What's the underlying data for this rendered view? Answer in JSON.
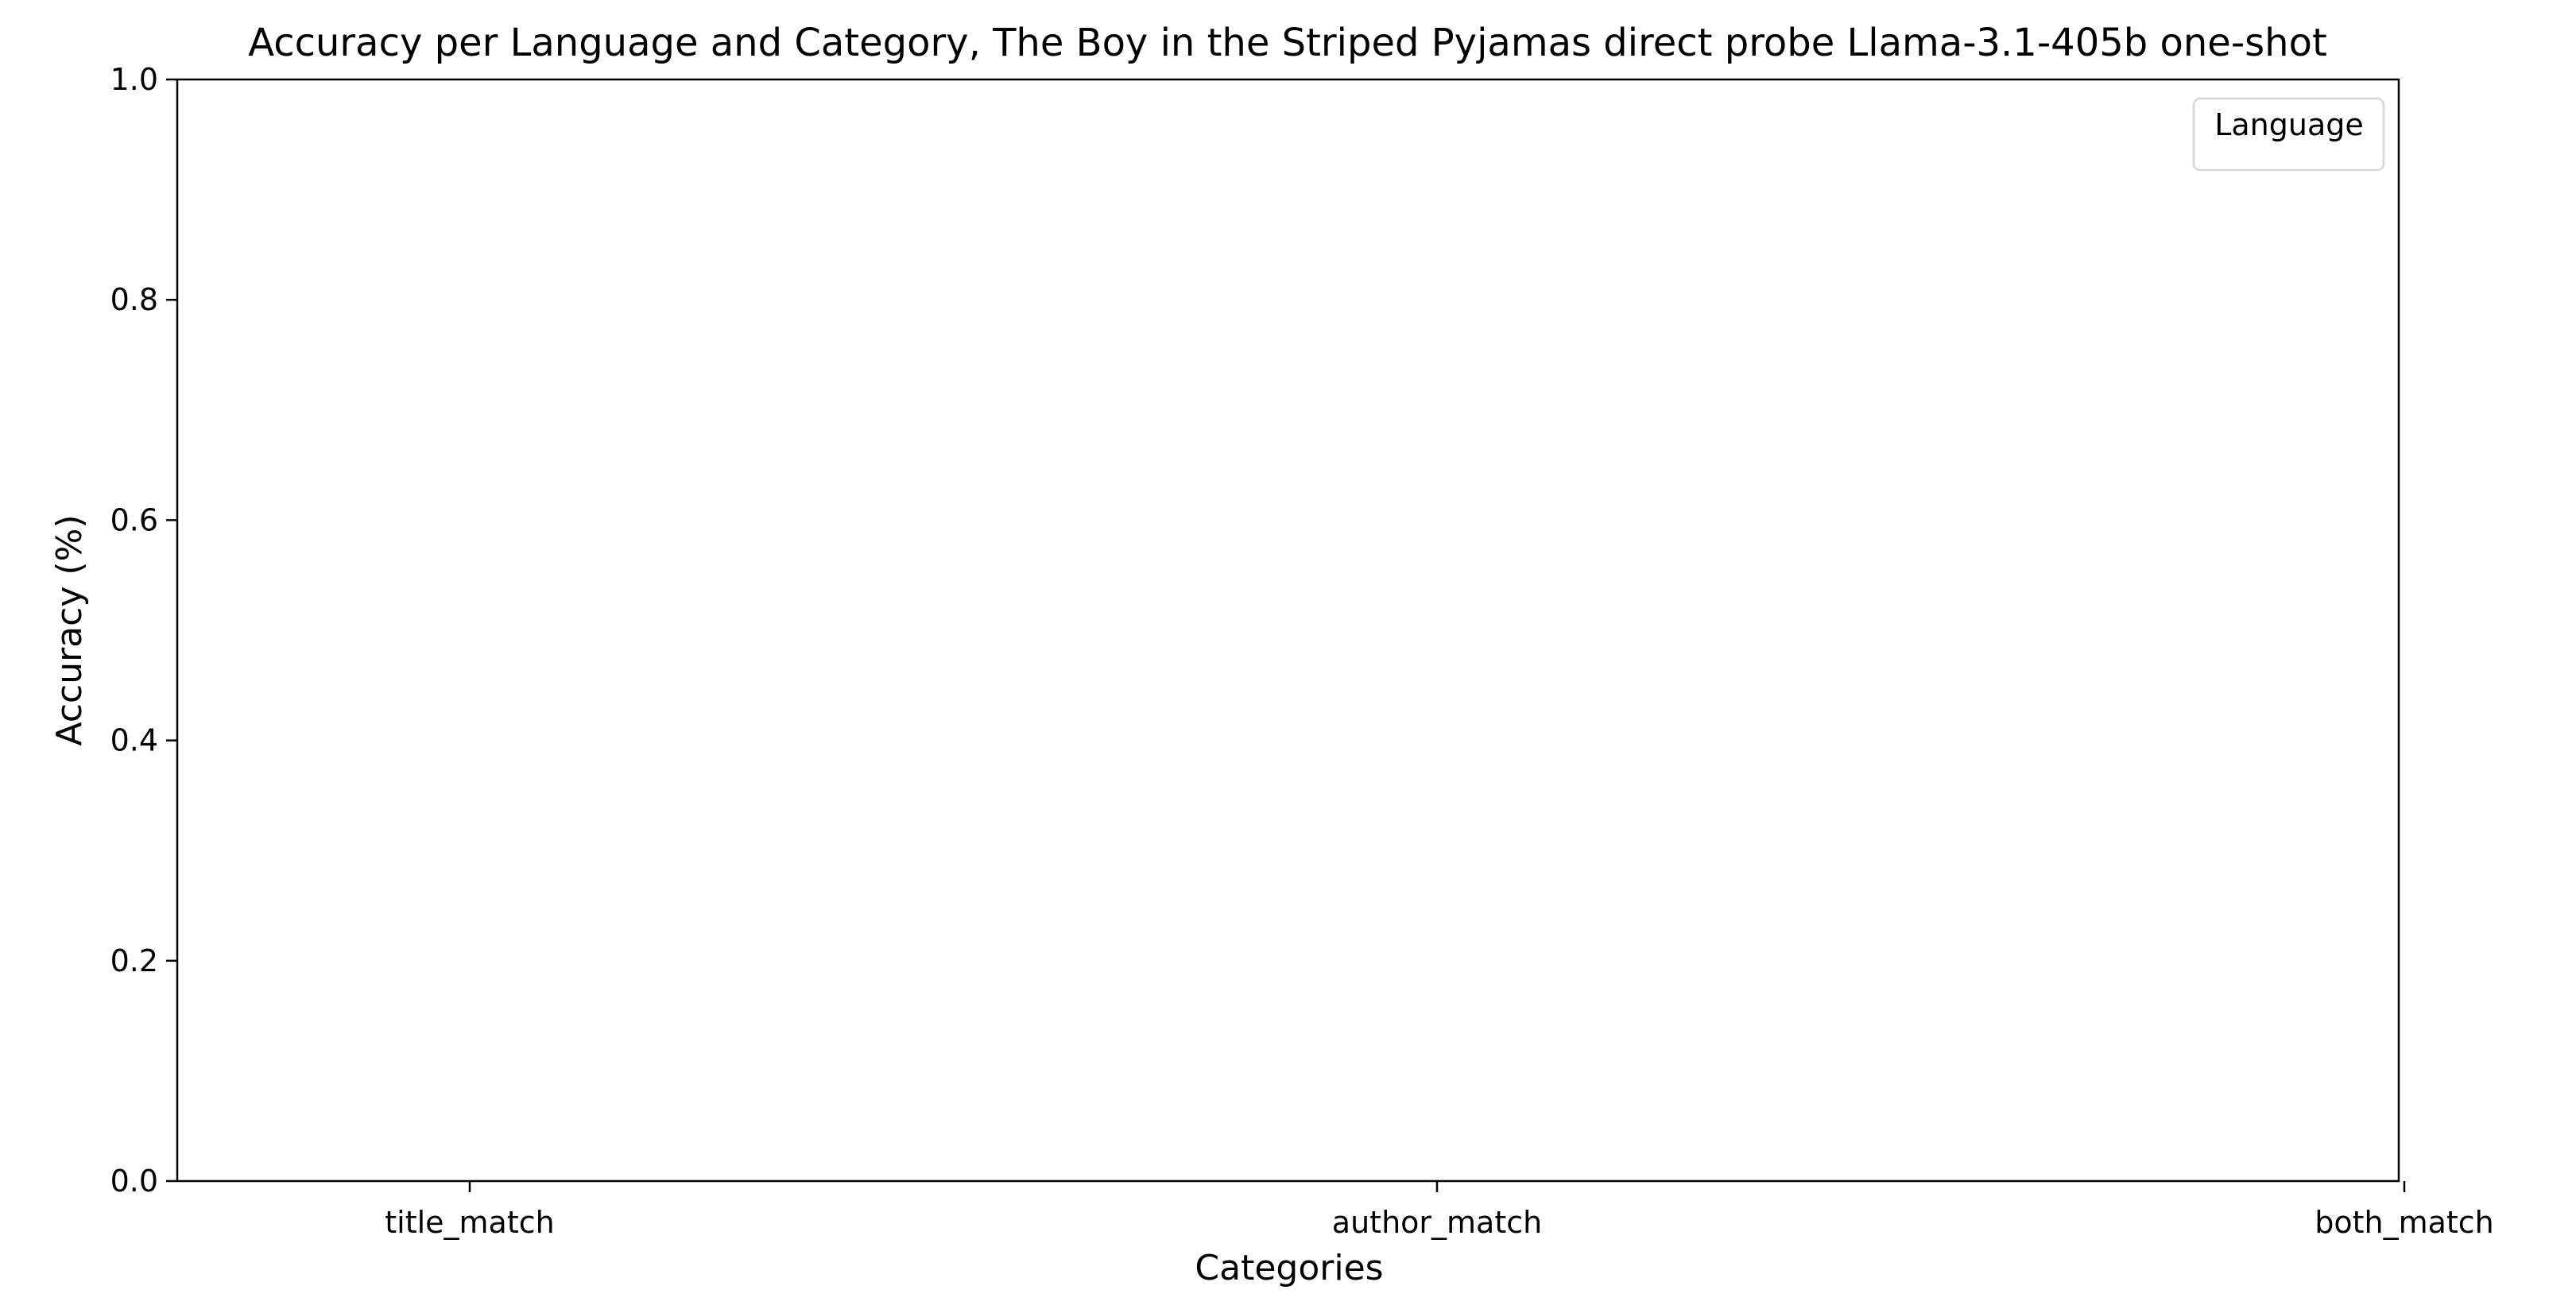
{
  "chart_data": {
    "type": "bar",
    "title": "Accuracy per Language and Category, The Boy in the Striped Pyjamas direct probe Llama-3.1-405b one-shot",
    "xlabel": "Categories",
    "ylabel": "Accuracy (%)",
    "categories": [
      "title_match",
      "author_match",
      "both_match"
    ],
    "series": [],
    "ylim": [
      0,
      1
    ],
    "yticks": [
      "0.0",
      "0.2",
      "0.4",
      "0.6",
      "0.8",
      "1.0"
    ],
    "grid": false,
    "legend": {
      "title": "Language",
      "entries": [],
      "placement": "top-right"
    }
  }
}
